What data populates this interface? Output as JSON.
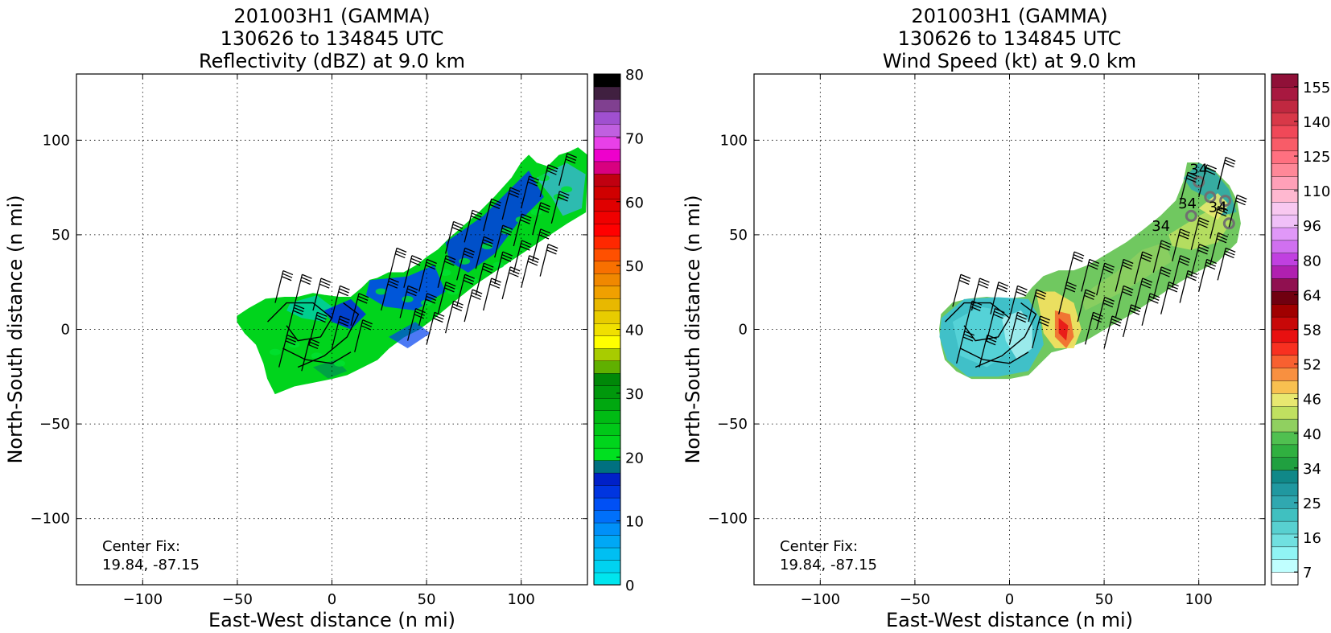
{
  "chart_data": [
    {
      "type": "heatmap",
      "title_lines": [
        "201003H1 (GAMMA)",
        "130626 to 134845 UTC",
        "Reflectivity (dBZ) at 9.0 km"
      ],
      "xlabel": "East-West distance (n mi)",
      "ylabel": "North-South distance (n mi)",
      "xlim": [
        -135,
        135
      ],
      "ylim": [
        -135,
        135
      ],
      "xticks": [
        -100,
        -50,
        0,
        50,
        100
      ],
      "yticks": [
        -100,
        -50,
        0,
        50,
        100
      ],
      "grid": true,
      "annotation": [
        "Center Fix:",
        "19.84, -87.15"
      ],
      "colorbar": {
        "min": 0,
        "max": 80,
        "tick_labels": [
          "0",
          "10",
          "20",
          "30",
          "40",
          "50",
          "60",
          "70",
          "80"
        ],
        "colors": [
          "#00e5ee",
          "#00d2f0",
          "#00bff2",
          "#00a8f5",
          "#0090f8",
          "#0070fa",
          "#0050f5",
          "#0035e0",
          "#0020c8",
          "#007080",
          "#00e020",
          "#00d51c",
          "#00c818",
          "#00bb14",
          "#00a810",
          "#00980c",
          "#008808",
          "#60b000",
          "#a8cc00",
          "#ffff00",
          "#f0e000",
          "#e8cc00",
          "#e8b800",
          "#f0a000",
          "#f08800",
          "#f87000",
          "#ff5000",
          "#ff2800",
          "#ff0000",
          "#f00000",
          "#e00000",
          "#d00000",
          "#c00010",
          "#d80080",
          "#ee00cc",
          "#e840e8",
          "#c060e0",
          "#a050d0",
          "#804090",
          "#402040",
          "#000000"
        ]
      }
    },
    {
      "type": "heatmap",
      "title_lines": [
        "201003H1 (GAMMA)",
        "130626 to 134845 UTC",
        "Wind Speed (kt) at 9.0 km"
      ],
      "xlabel": "East-West distance (n mi)",
      "ylabel": "North-South distance (n mi)",
      "xlim": [
        -135,
        135
      ],
      "ylim": [
        -135,
        135
      ],
      "xticks": [
        -100,
        -50,
        0,
        50,
        100
      ],
      "yticks": [
        -100,
        -50,
        0,
        50,
        100
      ],
      "grid": true,
      "annotation": [
        "Center Fix:",
        "19.84, -87.15"
      ],
      "contour_labels": [
        "34",
        "34",
        "34",
        "34"
      ],
      "colorbar": {
        "tick_labels": [
          "7",
          "16",
          "25",
          "34",
          "40",
          "46",
          "52",
          "58",
          "64",
          "80",
          "96",
          "110",
          "125",
          "140",
          "155"
        ],
        "colors": [
          "#ffffff",
          "#c0ffff",
          "#90f4f4",
          "#70e0e0",
          "#58d0d0",
          "#40c0c0",
          "#30a8b0",
          "#2098a0",
          "#108888",
          "#20a040",
          "#30b040",
          "#50c050",
          "#90d060",
          "#c0e060",
          "#e8e870",
          "#f8c050",
          "#f89040",
          "#f86030",
          "#f83020",
          "#e81010",
          "#c80808",
          "#a00000",
          "#700010",
          "#901050",
          "#b020b0",
          "#c040e0",
          "#d070f0",
          "#e098f8",
          "#f0c0f8",
          "#f8c8f0",
          "#ffb8d0",
          "#ffa0b8",
          "#ff8898",
          "#ff7080",
          "#f85c68",
          "#f04858",
          "#d83848",
          "#c02840",
          "#a81840",
          "#901038"
        ]
      }
    }
  ]
}
